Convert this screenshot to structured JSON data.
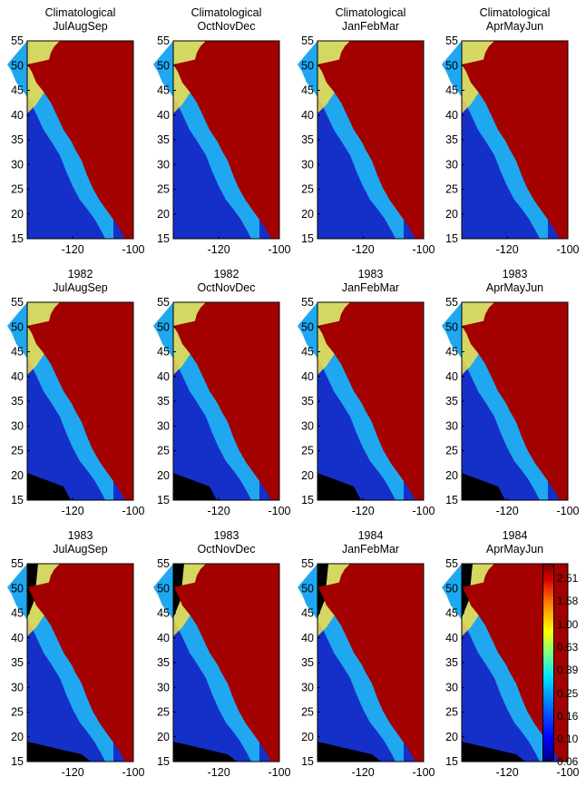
{
  "panels": [
    {
      "line1": "Climatological",
      "line2": "JulAugSep"
    },
    {
      "line1": "Climatological",
      "line2": "OctNovDec"
    },
    {
      "line1": "Climatological",
      "line2": "JanFebMar"
    },
    {
      "line1": "Climatological",
      "line2": "AprMayJun"
    },
    {
      "line1": "1982",
      "line2": "JulAugSep"
    },
    {
      "line1": "1982",
      "line2": "OctNovDec"
    },
    {
      "line1": "1983",
      "line2": "JanFebMar"
    },
    {
      "line1": "1983",
      "line2": "AprMayJun"
    },
    {
      "line1": "1983",
      "line2": "JulAugSep"
    },
    {
      "line1": "1983",
      "line2": "OctNovDec"
    },
    {
      "line1": "1984",
      "line2": "JanFebMar"
    },
    {
      "line1": "1984",
      "line2": "AprMayJun"
    }
  ],
  "y_ticks": [
    "55",
    "50",
    "45",
    "40",
    "35",
    "30",
    "25",
    "20",
    "15"
  ],
  "x_ticks": [
    "-120",
    "-100"
  ],
  "colorbar": {
    "labels": [
      "2.51",
      "1.58",
      "1.00",
      "0.63",
      "0.39",
      "0.25",
      "0.16",
      "0.10",
      "0.06"
    ]
  },
  "colors": {
    "land": "#a30000",
    "offshore": "#1530c8",
    "coastal_band": "#1fa8f0",
    "nearshore": "#f4e04a",
    "no_data": "#000000"
  }
}
